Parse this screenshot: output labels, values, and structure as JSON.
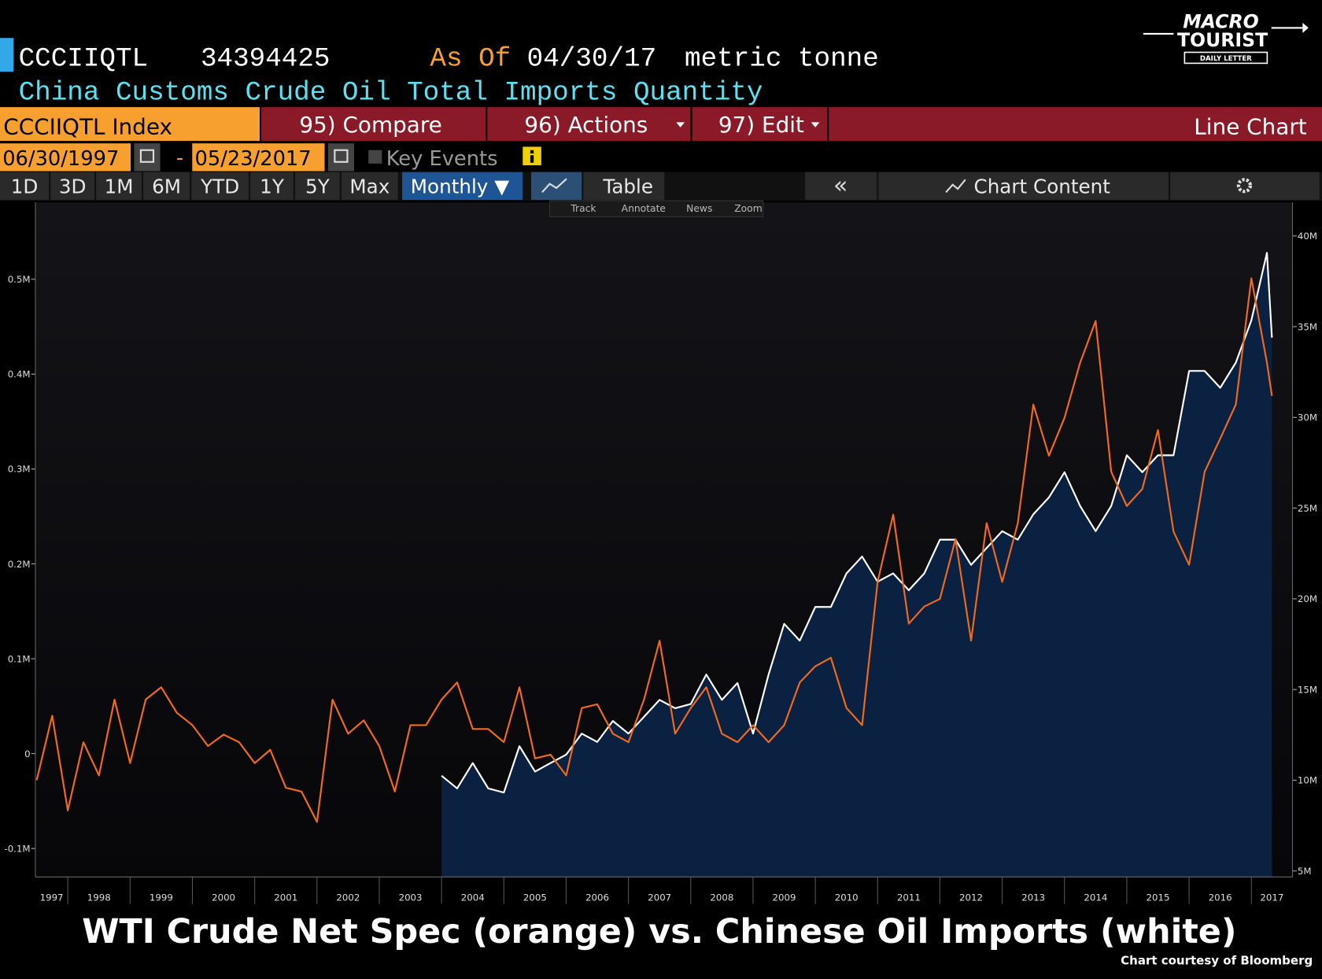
{
  "header": {
    "ticker": "CCCIIQTL",
    "value": "34394425",
    "as_of_label": "As Of",
    "as_of_date": "04/30/17",
    "unit": "metric tonne",
    "description": "China Customs Crude Oil Total Imports Quantity"
  },
  "logo": {
    "line1": "MACRO",
    "line2": "TOURIST",
    "line3": "DAILY LETTER"
  },
  "toolbar": {
    "security": "CCCIIQTL Index",
    "compare": "95) Compare",
    "actions": "96) Actions",
    "edit": "97) Edit",
    "chart_type": "Line Chart"
  },
  "date_bar": {
    "start": "06/30/1997",
    "separator": "-",
    "end": "05/23/2017",
    "key_events": "Key Events"
  },
  "periods": [
    "1D",
    "3D",
    "1M",
    "6M",
    "YTD",
    "1Y",
    "5Y",
    "Max"
  ],
  "frequency": "Monthly ▼",
  "table": "Table",
  "collapse": "«",
  "chart_content": "Chart Content",
  "chart_tools": [
    "Track",
    "Annotate",
    "News",
    "Zoom"
  ],
  "chart_data": {
    "type": "line",
    "x": [
      1997.5,
      1997.75,
      1998,
      1998.25,
      1998.5,
      1998.75,
      1999,
      1999.25,
      1999.5,
      1999.75,
      2000,
      2000.25,
      2000.5,
      2000.75,
      2001,
      2001.25,
      2001.5,
      2001.75,
      2002,
      2002.25,
      2002.5,
      2002.75,
      2003,
      2003.25,
      2003.5,
      2003.75,
      2004,
      2004.25,
      2004.5,
      2004.75,
      2005,
      2005.25,
      2005.5,
      2005.75,
      2006,
      2006.25,
      2006.5,
      2006.75,
      2007,
      2007.25,
      2007.5,
      2007.75,
      2008,
      2008.25,
      2008.5,
      2008.75,
      2009,
      2009.25,
      2009.5,
      2009.75,
      2010,
      2010.25,
      2010.5,
      2010.75,
      2011,
      2011.25,
      2011.5,
      2011.75,
      2012,
      2012.25,
      2012.5,
      2012.75,
      2013,
      2013.25,
      2013.5,
      2013.75,
      2014,
      2014.25,
      2014.5,
      2014.75,
      2015,
      2015.25,
      2015.5,
      2015.75,
      2016,
      2016.25,
      2016.5,
      2016.75,
      2017,
      2017.25,
      2017.33
    ],
    "series": [
      {
        "color": "#f26b1d",
        "axis": "y",
        "values": [
          -28000,
          40000,
          -60000,
          12000,
          -23000,
          57000,
          -10000,
          57000,
          70000,
          43000,
          30000,
          8000,
          20000,
          12000,
          -10000,
          4000,
          -36000,
          -40000,
          -72000,
          57000,
          21000,
          35000,
          8000,
          -40000,
          30000,
          30000,
          57000,
          75000,
          26000,
          26000,
          12000,
          70000,
          -5000,
          -1000,
          -23000,
          48000,
          52000,
          21000,
          12000,
          57000,
          119000,
          21000,
          48000,
          70000,
          21000,
          12000,
          30000,
          12000,
          30000,
          75000,
          92000,
          101000,
          48000,
          30000,
          181000,
          252000,
          137000,
          155000,
          163000,
          226000,
          119000,
          243000,
          181000,
          243000,
          368000,
          314000,
          354000,
          412000,
          456000,
          297000,
          261000,
          279000,
          341000,
          234000,
          199000,
          297000,
          332000,
          368000,
          501000,
          412000,
          377000
        ]
      },
      {
        "color": "#ffffff",
        "area_color": "#0b2142",
        "axis": "y2",
        "values": [
          null,
          null,
          null,
          null,
          null,
          null,
          null,
          null,
          null,
          null,
          null,
          null,
          null,
          null,
          null,
          null,
          null,
          null,
          null,
          null,
          null,
          null,
          null,
          null,
          null,
          null,
          10250000,
          9550000,
          10950000,
          9550000,
          9320000,
          11880000,
          10480000,
          10950000,
          11410000,
          12570000,
          12110000,
          13270000,
          12570000,
          13500000,
          14430000,
          13970000,
          14200000,
          15830000,
          14430000,
          15360000,
          12570000,
          15830000,
          18620000,
          17690000,
          19550000,
          19550000,
          21400000,
          22330000,
          20940000,
          21400000,
          20470000,
          21400000,
          23260000,
          23260000,
          21870000,
          22800000,
          23730000,
          23260000,
          24660000,
          25590000,
          26980000,
          25120000,
          23730000,
          25120000,
          27910000,
          26980000,
          27910000,
          27910000,
          32560000,
          32560000,
          31630000,
          33020000,
          35350000,
          39070000,
          34394425
        ]
      }
    ],
    "xlim": [
      1997.48,
      2017.66
    ],
    "xticks": [
      1997,
      1998,
      1999,
      2000,
      2001,
      2002,
      2003,
      2004,
      2005,
      2006,
      2007,
      2008,
      2009,
      2010,
      2011,
      2012,
      2013,
      2014,
      2015,
      2016,
      2017
    ],
    "ylim": [
      -130000,
      581000
    ],
    "yticks": [
      {
        "value": -100000,
        "label": "-0.1M"
      },
      0,
      {
        "value": 100000,
        "label": "0.1M"
      },
      {
        "value": 200000,
        "label": "0.2M"
      },
      {
        "value": 300000,
        "label": "0.3M"
      },
      {
        "value": 400000,
        "label": "0.4M"
      },
      {
        "value": 500000,
        "label": "0.5M"
      }
    ],
    "y2lim": [
      4670000,
      41850000
    ],
    "y2ticks": [
      {
        "value": 5000000,
        "label": "5M"
      },
      {
        "value": 10000000,
        "label": "10M"
      },
      {
        "value": 15000000,
        "label": "15M"
      },
      {
        "value": 20000000,
        "label": "20M"
      },
      {
        "value": 25000000,
        "label": "25M"
      },
      {
        "value": 30000000,
        "label": "30M"
      },
      {
        "value": 35000000,
        "label": "35M"
      },
      {
        "value": 40000000,
        "label": "40M"
      }
    ],
    "grid": false
  },
  "caption": "WTI Crude Net Spec (orange) vs. Chinese Oil Imports (white)",
  "credit": "Chart courtesy of Bloomberg"
}
